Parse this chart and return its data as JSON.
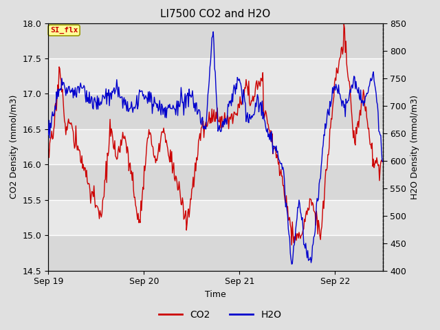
{
  "title": "LI7500 CO2 and H2O",
  "xlabel": "Time",
  "ylabel_left": "CO2 Density (mmol/m3)",
  "ylabel_right": "H2O Density (mmol/m3)",
  "ylim_left": [
    14.5,
    18.0
  ],
  "ylim_right": [
    400,
    850
  ],
  "xtick_labels": [
    "Sep 19",
    "Sep 20",
    "Sep 21",
    "Sep 22"
  ],
  "xtick_positions": [
    0.0,
    1.0,
    2.0,
    3.0
  ],
  "yticks_left": [
    14.5,
    15.0,
    15.5,
    16.0,
    16.5,
    17.0,
    17.5,
    18.0
  ],
  "yticks_right": [
    400,
    450,
    500,
    550,
    600,
    650,
    700,
    750,
    800,
    850
  ],
  "legend_label_co2": "CO2",
  "legend_label_h2o": "H2O",
  "co2_color": "#cc0000",
  "h2o_color": "#0000cc",
  "annotation_text": "SI_flx",
  "annotation_color": "#cc0000",
  "annotation_bg": "#ffff99",
  "fig_bg": "#e0e0e0",
  "plot_bg": "#e8e8e8",
  "band_dark": "#d8d8d8",
  "band_light": "#e8e8e8",
  "grid_color": "#ffffff",
  "n_points": 500,
  "title_fontsize": 11,
  "axis_fontsize": 9,
  "tick_fontsize": 9,
  "legend_fontsize": 10,
  "xlim": [
    0.0,
    3.5
  ]
}
